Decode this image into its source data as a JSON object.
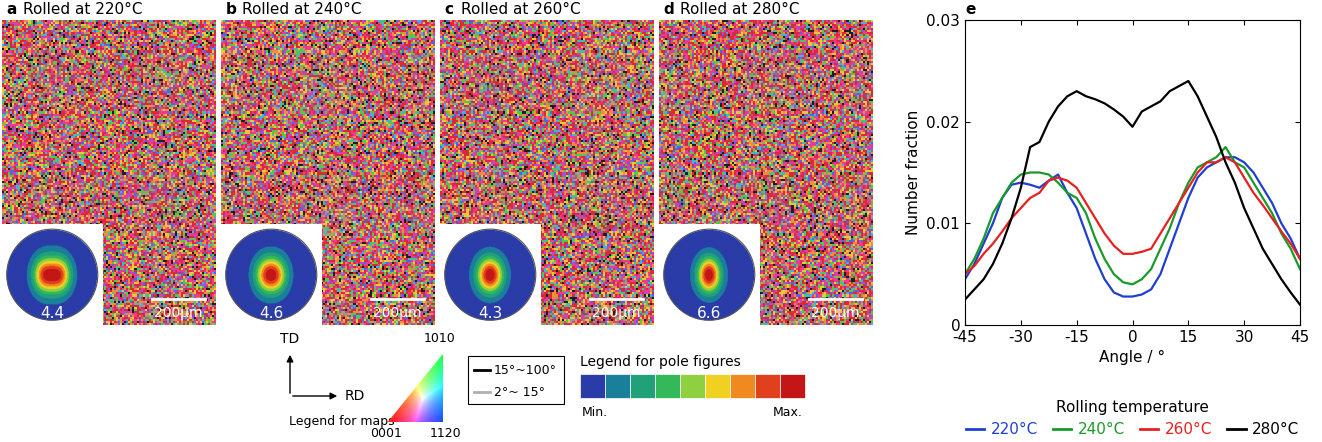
{
  "maps": [
    {
      "label": "a",
      "title": "Rolled at 220°C",
      "pole_figure_max": 4.4,
      "scale_bar": "200μm"
    },
    {
      "label": "b",
      "title": "Rolled at 240°C",
      "pole_figure_max": 4.6,
      "scale_bar": "200μm"
    },
    {
      "label": "c",
      "title": "Rolled at 260°C",
      "pole_figure_max": 4.3,
      "scale_bar": "200μm"
    },
    {
      "label": "d",
      "title": "Rolled at 280°C",
      "pole_figure_max": 6.6,
      "scale_bar": "200μm"
    }
  ],
  "legends": {
    "directions": {
      "vertical": "TD",
      "horizontal": "RD"
    },
    "map_legend": {
      "title": "Legend for maps",
      "bottom_left": "0001",
      "bottom_right": "1120",
      "top": "1010"
    },
    "boundaries": [
      {
        "label": "15°~100°",
        "color": "#000000"
      },
      {
        "label": "2°~ 15°",
        "color": "#b0b0b0"
      }
    ],
    "pole_figure_legend": {
      "title": "Legend for pole figures",
      "min": "Min.",
      "max": "Max."
    }
  },
  "chart_data": {
    "type": "line",
    "label": "e",
    "x_label": "Angle / °",
    "y_label": "Number fraction",
    "legend_title": "Rolling temperature",
    "legend": "bottom",
    "xlim": [
      -45,
      45
    ],
    "xticks": [
      -45,
      -30,
      -15,
      0,
      15,
      30,
      45
    ],
    "ylim": [
      0,
      0.03
    ],
    "yticks": [
      0,
      0.01,
      0.02,
      0.03
    ],
    "x": [
      -45,
      -42.5,
      -40,
      -37.5,
      -35,
      -32.5,
      -30,
      -27.5,
      -25,
      -22.5,
      -20,
      -17.5,
      -15,
      -12.5,
      -10,
      -7.5,
      -5,
      -2.5,
      0,
      2.5,
      5,
      7.5,
      10,
      12.5,
      15,
      17.5,
      20,
      22.5,
      25,
      27.5,
      30,
      32.5,
      35,
      37.5,
      40,
      42.5,
      45
    ],
    "series": [
      {
        "name": "220°C",
        "color": "#1f3fd0",
        "values": [
          0.0045,
          0.006,
          0.008,
          0.01,
          0.0125,
          0.0138,
          0.014,
          0.0138,
          0.0135,
          0.0142,
          0.0148,
          0.013,
          0.0115,
          0.009,
          0.0065,
          0.0045,
          0.0032,
          0.0028,
          0.0028,
          0.003,
          0.0035,
          0.005,
          0.0075,
          0.01,
          0.0125,
          0.0145,
          0.0155,
          0.016,
          0.0165,
          0.0165,
          0.016,
          0.015,
          0.0135,
          0.012,
          0.01,
          0.0085,
          0.0065
        ]
      },
      {
        "name": "240°C",
        "color": "#1a9a2a",
        "values": [
          0.005,
          0.0065,
          0.0085,
          0.011,
          0.0125,
          0.014,
          0.0148,
          0.015,
          0.015,
          0.0148,
          0.014,
          0.013,
          0.0125,
          0.011,
          0.0085,
          0.0065,
          0.005,
          0.0042,
          0.004,
          0.0045,
          0.0055,
          0.0075,
          0.0095,
          0.012,
          0.014,
          0.0155,
          0.016,
          0.0165,
          0.0175,
          0.016,
          0.0155,
          0.014,
          0.0125,
          0.011,
          0.009,
          0.0075,
          0.0055
        ]
      },
      {
        "name": "260°C",
        "color": "#e8201e",
        "values": [
          0.005,
          0.0058,
          0.007,
          0.008,
          0.0092,
          0.0105,
          0.0115,
          0.0125,
          0.013,
          0.0142,
          0.0145,
          0.0142,
          0.0135,
          0.012,
          0.0105,
          0.009,
          0.0078,
          0.007,
          0.007,
          0.0072,
          0.0075,
          0.009,
          0.0105,
          0.012,
          0.0135,
          0.015,
          0.016,
          0.016,
          0.0165,
          0.016,
          0.0145,
          0.013,
          0.0118,
          0.0105,
          0.0092,
          0.008,
          0.0065
        ]
      },
      {
        "name": "280°C",
        "color": "#000000",
        "values": [
          0.0025,
          0.0035,
          0.0045,
          0.006,
          0.008,
          0.0105,
          0.0135,
          0.0175,
          0.018,
          0.02,
          0.0215,
          0.0225,
          0.023,
          0.0225,
          0.0222,
          0.0218,
          0.0212,
          0.0205,
          0.0195,
          0.021,
          0.0215,
          0.022,
          0.023,
          0.0235,
          0.024,
          0.0225,
          0.0205,
          0.0185,
          0.016,
          0.014,
          0.0115,
          0.0095,
          0.0075,
          0.006,
          0.0045,
          0.0032,
          0.002
        ]
      }
    ]
  }
}
